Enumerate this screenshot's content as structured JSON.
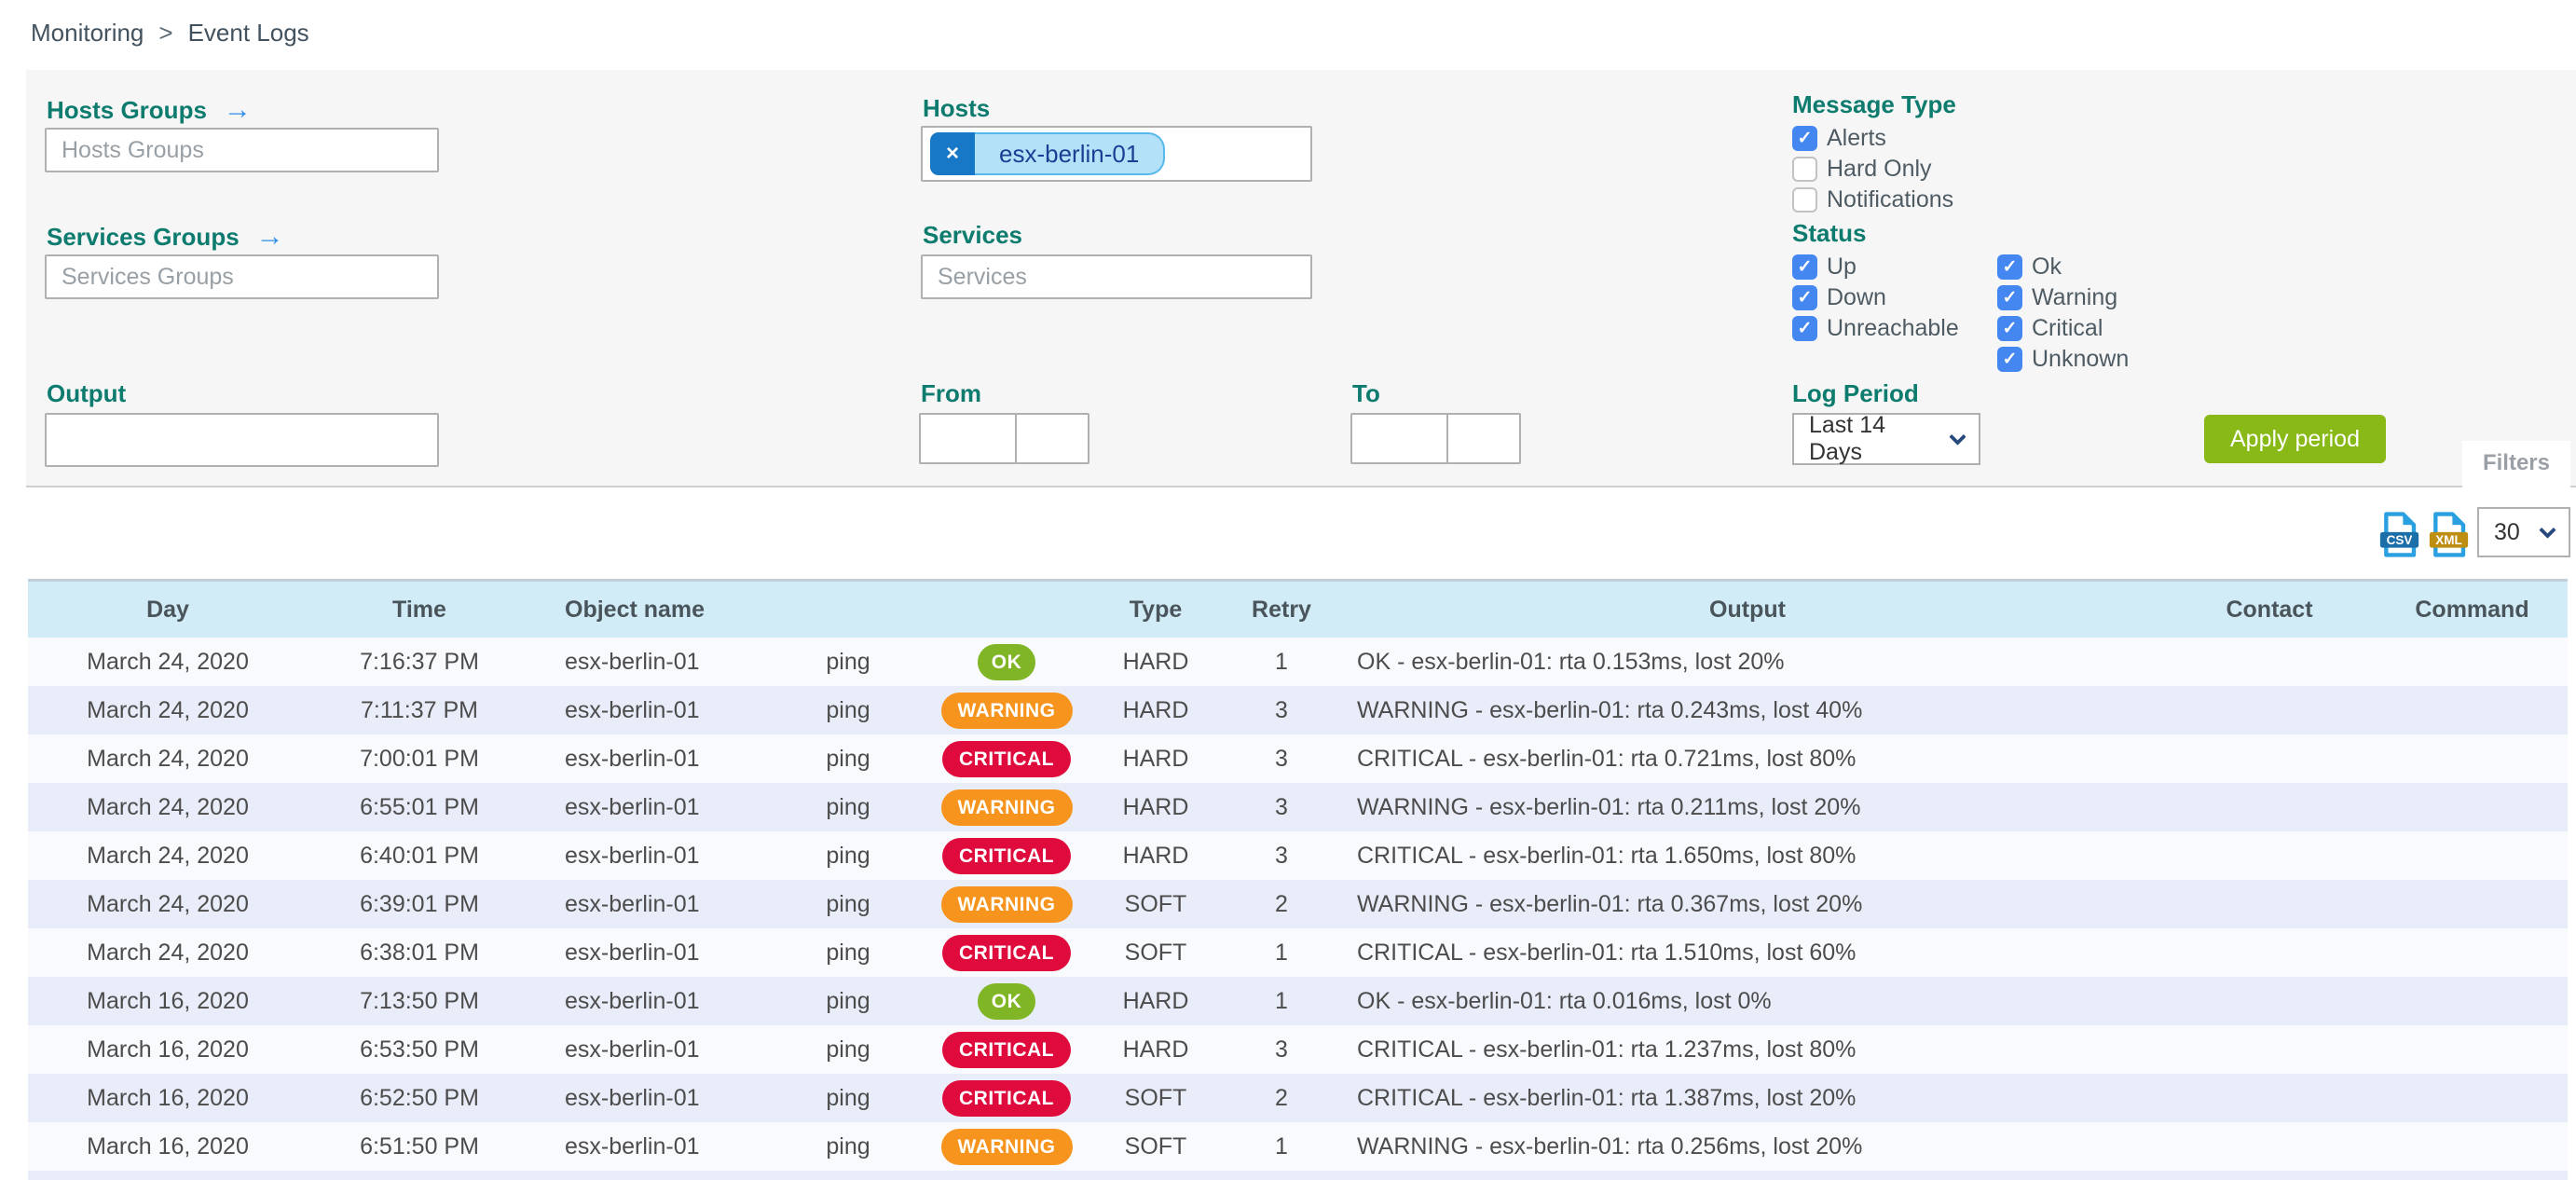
{
  "breadcrumb": {
    "items": [
      "Monitoring",
      "Event Logs"
    ],
    "separator": ">"
  },
  "filters": {
    "panel_tab_label": "Filters",
    "hosts_groups": {
      "label": "Hosts Groups",
      "placeholder": "Hosts Groups",
      "value": ""
    },
    "services_groups": {
      "label": "Services Groups",
      "placeholder": "Services Groups",
      "value": ""
    },
    "hosts": {
      "label": "Hosts",
      "chips": [
        "esx-berlin-01"
      ]
    },
    "services": {
      "label": "Services",
      "placeholder": "Services",
      "value": ""
    },
    "output": {
      "label": "Output",
      "value": ""
    },
    "from": {
      "label": "From",
      "date_value": "",
      "time_value": ""
    },
    "to": {
      "label": "To",
      "date_value": "",
      "time_value": ""
    },
    "message_type": {
      "label": "Message Type",
      "options": [
        {
          "label": "Alerts",
          "checked": true
        },
        {
          "label": "Hard Only",
          "checked": false
        },
        {
          "label": "Notifications",
          "checked": false
        }
      ]
    },
    "status": {
      "label": "Status",
      "column1": [
        {
          "label": "Up",
          "checked": true
        },
        {
          "label": "Down",
          "checked": true
        },
        {
          "label": "Unreachable",
          "checked": true
        }
      ],
      "column2": [
        {
          "label": "Ok",
          "checked": true
        },
        {
          "label": "Warning",
          "checked": true
        },
        {
          "label": "Critical",
          "checked": true
        },
        {
          "label": "Unknown",
          "checked": true
        }
      ]
    },
    "log_period": {
      "label": "Log Period",
      "selected": "Last 14 Days"
    },
    "apply_button": "Apply period"
  },
  "toolbar": {
    "export_csv": "CSV",
    "export_xml": "XML",
    "page_size": "30"
  },
  "table": {
    "headers": [
      "Day",
      "Time",
      "Object name",
      "",
      "",
      "Type",
      "Retry",
      "Output",
      "Contact",
      "Command"
    ],
    "rows": [
      {
        "day": "March 24, 2020",
        "time": "7:16:37 PM",
        "object": "esx-berlin-01",
        "service": "ping",
        "status": "OK",
        "type": "HARD",
        "retry": "1",
        "output": "OK - esx-berlin-01: rta 0.153ms, lost 20%",
        "contact": "",
        "command": ""
      },
      {
        "day": "March 24, 2020",
        "time": "7:11:37 PM",
        "object": "esx-berlin-01",
        "service": "ping",
        "status": "WARNING",
        "type": "HARD",
        "retry": "3",
        "output": "WARNING - esx-berlin-01: rta 0.243ms, lost 40%",
        "contact": "",
        "command": ""
      },
      {
        "day": "March 24, 2020",
        "time": "7:00:01 PM",
        "object": "esx-berlin-01",
        "service": "ping",
        "status": "CRITICAL",
        "type": "HARD",
        "retry": "3",
        "output": "CRITICAL - esx-berlin-01: rta 0.721ms, lost 80%",
        "contact": "",
        "command": ""
      },
      {
        "day": "March 24, 2020",
        "time": "6:55:01 PM",
        "object": "esx-berlin-01",
        "service": "ping",
        "status": "WARNING",
        "type": "HARD",
        "retry": "3",
        "output": "WARNING - esx-berlin-01: rta 0.211ms, lost 20%",
        "contact": "",
        "command": ""
      },
      {
        "day": "March 24, 2020",
        "time": "6:40:01 PM",
        "object": "esx-berlin-01",
        "service": "ping",
        "status": "CRITICAL",
        "type": "HARD",
        "retry": "3",
        "output": "CRITICAL - esx-berlin-01: rta 1.650ms, lost 80%",
        "contact": "",
        "command": ""
      },
      {
        "day": "March 24, 2020",
        "time": "6:39:01 PM",
        "object": "esx-berlin-01",
        "service": "ping",
        "status": "WARNING",
        "type": "SOFT",
        "retry": "2",
        "output": "WARNING - esx-berlin-01: rta 0.367ms, lost 20%",
        "contact": "",
        "command": ""
      },
      {
        "day": "March 24, 2020",
        "time": "6:38:01 PM",
        "object": "esx-berlin-01",
        "service": "ping",
        "status": "CRITICAL",
        "type": "SOFT",
        "retry": "1",
        "output": "CRITICAL - esx-berlin-01: rta 1.510ms, lost 60%",
        "contact": "",
        "command": ""
      },
      {
        "day": "March 16, 2020",
        "time": "7:13:50 PM",
        "object": "esx-berlin-01",
        "service": "ping",
        "status": "OK",
        "type": "HARD",
        "retry": "1",
        "output": "OK - esx-berlin-01: rta 0.016ms, lost 0%",
        "contact": "",
        "command": ""
      },
      {
        "day": "March 16, 2020",
        "time": "6:53:50 PM",
        "object": "esx-berlin-01",
        "service": "ping",
        "status": "CRITICAL",
        "type": "HARD",
        "retry": "3",
        "output": "CRITICAL - esx-berlin-01: rta 1.237ms, lost 80%",
        "contact": "",
        "command": ""
      },
      {
        "day": "March 16, 2020",
        "time": "6:52:50 PM",
        "object": "esx-berlin-01",
        "service": "ping",
        "status": "CRITICAL",
        "type": "SOFT",
        "retry": "2",
        "output": "CRITICAL - esx-berlin-01: rta 1.387ms, lost 20%",
        "contact": "",
        "command": ""
      },
      {
        "day": "March 16, 2020",
        "time": "6:51:50 PM",
        "object": "esx-berlin-01",
        "service": "ping",
        "status": "WARNING",
        "type": "SOFT",
        "retry": "1",
        "output": "WARNING - esx-berlin-01: rta 0.256ms, lost 20%",
        "contact": "",
        "command": ""
      }
    ]
  },
  "colors": {
    "accent_teal": "#0d7b6e",
    "link_blue": "#2f8fe8",
    "checkbox_blue": "#4587f1",
    "ok": "#80b626",
    "warning": "#f7941e",
    "critical": "#e00b3d",
    "button_green": "#88b917",
    "table_header_bg": "#d2ecf7",
    "chip_bg": "#b3e1f7",
    "chip_remove_bg": "#1878c8"
  }
}
